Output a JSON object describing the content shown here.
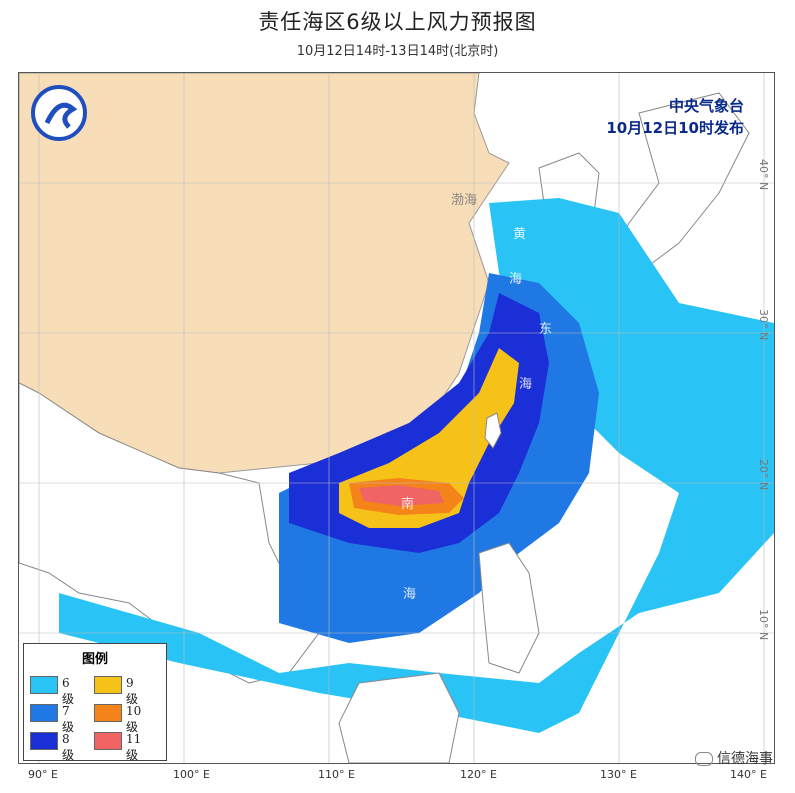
{
  "title": "责任海区6级以上风力预报图",
  "subtitle": "10月12日14时-13日14时(北京时)",
  "issuer": {
    "line1": "中央气象台",
    "line2": "10月12日10时发布"
  },
  "legend": {
    "title": "图例",
    "items": [
      {
        "label": "6级",
        "color": "#29c4f5"
      },
      {
        "label": "9级",
        "color": "#f7c217"
      },
      {
        "label": "7级",
        "color": "#1f78e3"
      },
      {
        "label": "10级",
        "color": "#f48419"
      },
      {
        "label": "8级",
        "color": "#1a2fd6"
      },
      {
        "label": "11级",
        "color": "#f06464"
      }
    ]
  },
  "longitude_labels": [
    "90° E",
    "100° E",
    "110° E",
    "120° E",
    "130° E",
    "140° E"
  ],
  "latitude_labels": [
    "40° N",
    "30° N",
    "20° N",
    "10° N"
  ],
  "sea_labels": {
    "bohai": "渤海",
    "huanghai": [
      "黄",
      "海"
    ],
    "donghai": [
      "东",
      "海"
    ],
    "nanhai": [
      "南",
      "海"
    ]
  },
  "watermark": "信德海事",
  "colors": {
    "land": "#f7deb9",
    "sea": "#ffffff"
  }
}
